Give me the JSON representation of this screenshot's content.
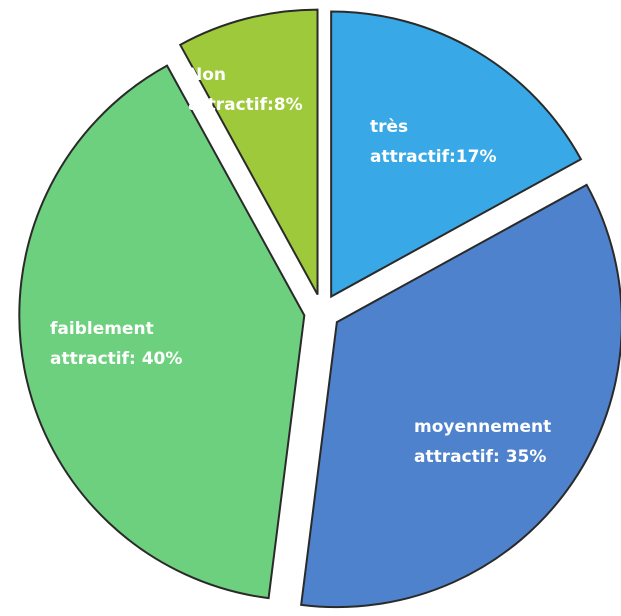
{
  "chart_data": {
    "type": "pie",
    "values": [
      17,
      35,
      40,
      8
    ],
    "value_labels": [
      "très attractif:17%",
      "moyennement attractif: 35%",
      "faiblement attractif: 40%",
      "Non attractif:8%"
    ],
    "colors": [
      "#38a9e6",
      "#4e82cc",
      "#6dd07e",
      "#9dc93a"
    ],
    "start_angle": 0,
    "direction": "clockwise",
    "exploded": true
  }
}
